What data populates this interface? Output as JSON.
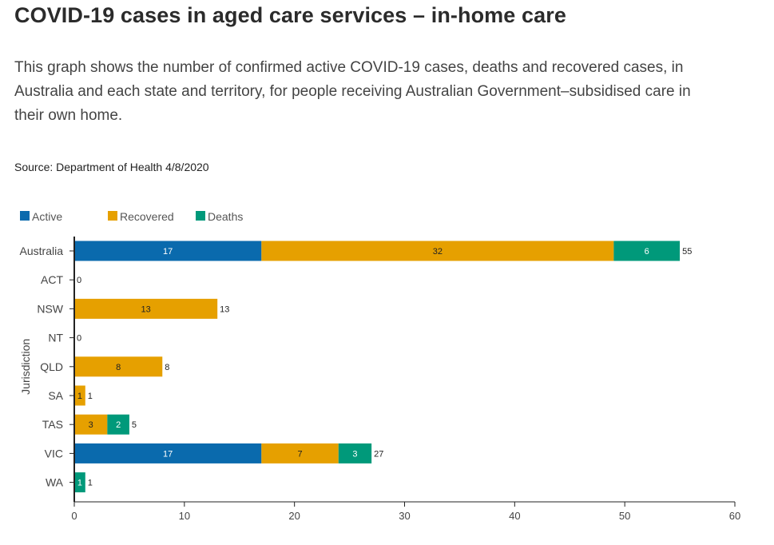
{
  "page": {
    "title": "COVID-19 cases in aged care services – in-home care",
    "description": "This graph shows the number of confirmed active COVID-19 cases, deaths and recovered cases, in Australia and each state and territory, for people receiving Australian Government–subsidised care in their own home.",
    "source": "Source: Department of Health 4/8/2020"
  },
  "colors": {
    "active": "#0a6aad",
    "recovered": "#e6a000",
    "deaths": "#00997a",
    "axis": "#222222"
  },
  "chart_data": {
    "type": "bar",
    "orientation": "horizontal",
    "stacked": true,
    "ylabel": "Jurisdiction",
    "xlabel": "",
    "xlim": [
      0,
      60
    ],
    "xticks": [
      0,
      10,
      20,
      30,
      40,
      50,
      60
    ],
    "grid": false,
    "legend_position": "top-left",
    "categories": [
      "Australia",
      "ACT",
      "NSW",
      "NT",
      "QLD",
      "SA",
      "TAS",
      "VIC",
      "WA"
    ],
    "series": [
      {
        "name": "Active",
        "color": "#0a6aad",
        "label_color": "#ffffff",
        "values": [
          17,
          0,
          0,
          0,
          0,
          0,
          0,
          17,
          0
        ]
      },
      {
        "name": "Recovered",
        "color": "#e6a000",
        "label_color": "#222222",
        "values": [
          32,
          0,
          13,
          0,
          8,
          1,
          3,
          7,
          0
        ]
      },
      {
        "name": "Deaths",
        "color": "#00997a",
        "label_color": "#ffffff",
        "values": [
          6,
          0,
          0,
          0,
          0,
          0,
          2,
          3,
          1
        ]
      }
    ],
    "totals": [
      55,
      0,
      13,
      0,
      8,
      1,
      5,
      27,
      1
    ]
  }
}
